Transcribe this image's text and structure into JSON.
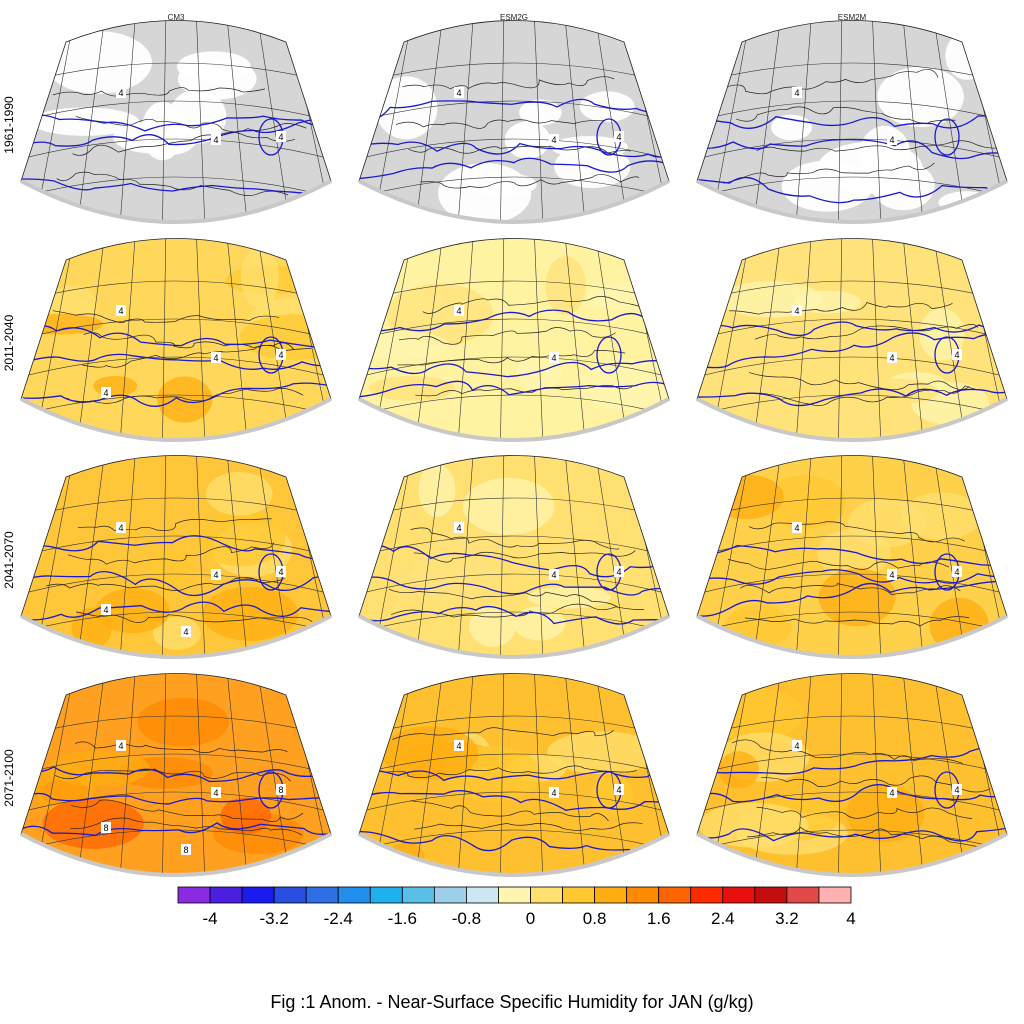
{
  "figure": {
    "caption": "Fig :1  Anom.  - Near-Surface Specific Humidity for JAN (g/kg)",
    "columns": [
      "CM3",
      "ESM2G",
      "ESM2M"
    ],
    "rows": [
      "1961-1990",
      "2011-2040",
      "2041-2070",
      "2071-2100"
    ]
  },
  "colorbar": {
    "labels": [
      "-4",
      "-3.2",
      "-2.4",
      "-1.6",
      "-0.8",
      "0",
      "0.8",
      "1.6",
      "2.4",
      "3.2",
      "4"
    ],
    "colors": [
      "#8a2be2",
      "#4b1fe0",
      "#1b1bf0",
      "#2a4fe0",
      "#2f6fe6",
      "#238fec",
      "#1fb1ef",
      "#5abfe8",
      "#9ecfea",
      "#cce6f2",
      "#fff5b0",
      "#ffe070",
      "#ffc830",
      "#ffad10",
      "#ff8a00",
      "#ff6400",
      "#ff2a00",
      "#e80f0f",
      "#c40e0e",
      "#e24a4a",
      "#ffb0b0"
    ]
  },
  "panels": [
    [
      {
        "fill": "#d6d6d6",
        "tone": "gray",
        "labels": [
          "4",
          "4",
          "4"
        ]
      },
      {
        "fill": "#d6d6d6",
        "tone": "gray",
        "labels": [
          "4",
          "4",
          "4"
        ]
      },
      {
        "fill": "#d6d6d6",
        "tone": "gray",
        "labels": [
          "4",
          "4"
        ]
      }
    ],
    [
      {
        "fill": "#ffd75a",
        "tone": "warm",
        "labels": [
          "4",
          "4",
          "4",
          "4"
        ]
      },
      {
        "fill": "#fff2a0",
        "tone": "light",
        "labels": [
          "4",
          "4"
        ]
      },
      {
        "fill": "#ffe27a",
        "tone": "light",
        "labels": [
          "4",
          "4",
          "4"
        ]
      }
    ],
    [
      {
        "fill": "#ffc63a",
        "tone": "warm",
        "labels": [
          "4",
          "4",
          "4",
          "4",
          "4"
        ]
      },
      {
        "fill": "#ffe070",
        "tone": "light",
        "labels": [
          "4",
          "4",
          "4"
        ]
      },
      {
        "fill": "#ffd04a",
        "tone": "warm",
        "labels": [
          "4",
          "4",
          "4"
        ]
      }
    ],
    [
      {
        "fill": "#ffa020",
        "tone": "hot",
        "labels": [
          "4",
          "4",
          "8",
          "8",
          "8"
        ]
      },
      {
        "fill": "#ffc030",
        "tone": "warm",
        "labels": [
          "4",
          "4",
          "4"
        ]
      },
      {
        "fill": "#ffc030",
        "tone": "warm",
        "labels": [
          "4",
          "4",
          "4"
        ]
      }
    ]
  ]
}
